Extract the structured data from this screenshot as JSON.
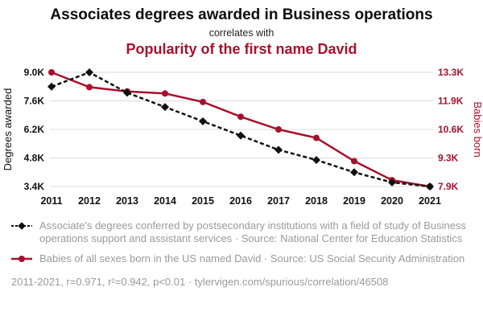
{
  "header": {
    "title": "Associates degrees awarded in Business operations",
    "connector": "correlates with",
    "subtitle": "Popularity of the first name David"
  },
  "colors": {
    "accent": "#a8112d",
    "series_black": "#111111",
    "gridline": "#dcdcdc",
    "legend_text": "#9a9a9a"
  },
  "chart_data": {
    "type": "line",
    "x": [
      2011,
      2012,
      2013,
      2014,
      2015,
      2016,
      2017,
      2018,
      2019,
      2020,
      2021
    ],
    "series": [
      {
        "id": "degrees",
        "name": "Associate's degrees conferred in Business operations support and assistant services",
        "axis": "left",
        "color": "#111111",
        "style": "dashed-diamond",
        "values": [
          8300,
          9000,
          8000,
          7300,
          6600,
          5900,
          5200,
          4700,
          4100,
          3600,
          3400
        ]
      },
      {
        "id": "david",
        "name": "Babies of all sexes born in the US named David",
        "axis": "right",
        "color": "#a8112d",
        "style": "solid-circle",
        "values": [
          13300,
          12600,
          12400,
          12300,
          11900,
          11200,
          10600,
          10200,
          9100,
          8200,
          7900
        ]
      }
    ],
    "left_axis": {
      "label": "Degrees awarded",
      "range": [
        3400,
        9000
      ],
      "ticks": [
        3400,
        4800,
        6200,
        7600,
        9000
      ],
      "tick_labels": [
        "3.4K",
        "4.8K",
        "6.2K",
        "7.6K",
        "9.0K"
      ]
    },
    "right_axis": {
      "label": "Babies born",
      "range": [
        7900,
        13300
      ],
      "ticks": [
        7900,
        9300,
        10600,
        11900,
        13300
      ],
      "tick_labels": [
        "7.9K",
        "9.3K",
        "10.6K",
        "11.9K",
        "13.3K"
      ]
    },
    "grid": true,
    "legend_position": "bottom"
  },
  "legend": {
    "items": [
      {
        "series": "degrees",
        "text": "Associate's degrees conferred by postsecondary institutions with a field of study of Business operations support and assistant services · Source: National Center for Education Statistics"
      },
      {
        "series": "david",
        "text": "Babies of all sexes born in the US named David · Source: US Social Security Administration"
      }
    ]
  },
  "footer": {
    "text": "2011-2021, r=0.971, r²=0.942, p<0.01 · tylervigen.com/spurious/correlation/46508"
  }
}
